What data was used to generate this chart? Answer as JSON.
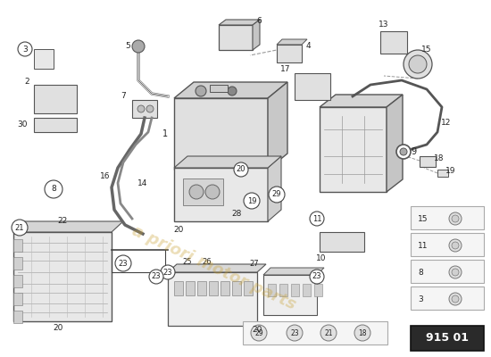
{
  "background_color": "#ffffff",
  "page_code": "915 01",
  "watermark_color": "#c8a032",
  "watermark_alpha": 0.35,
  "line_color": "#444444",
  "dashed_color": "#999999",
  "part_fill": "#e8e8e8",
  "part_edge": "#555555",
  "label_color": "#222222",
  "legend_bg": "#f0f0f0",
  "legend_border": "#aaaaaa"
}
